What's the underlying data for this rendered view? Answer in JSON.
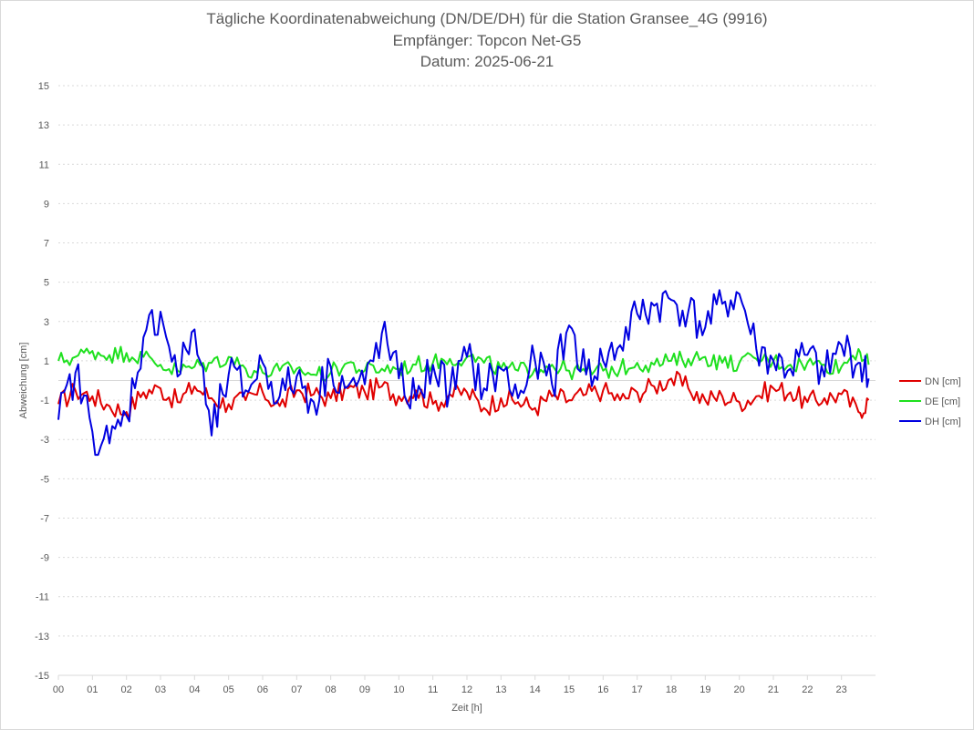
{
  "chart_data": {
    "type": "line",
    "title": "Tägliche Koordinatenabweichung (DN/DE/DH) für die Station Gransee_4G (9916)",
    "subtitle": "Empfänger: Topcon Net-G5",
    "date_label": "Datum: 2025-06-21",
    "xlabel": "Zeit [h]",
    "ylabel": "Abweichung [cm]",
    "ylim": [
      -15,
      15
    ],
    "xlim": [
      0,
      24
    ],
    "yticks": [
      15,
      13,
      11,
      9,
      7,
      5,
      3,
      1,
      -1,
      -3,
      -5,
      -7,
      -9,
      -11,
      -13,
      -15
    ],
    "xticks": [
      "00",
      "01",
      "02",
      "03",
      "04",
      "05",
      "06",
      "07",
      "08",
      "09",
      "10",
      "11",
      "12",
      "13",
      "14",
      "15",
      "16",
      "17",
      "18",
      "19",
      "20",
      "21",
      "22",
      "23"
    ],
    "grid": "horizontal dotted",
    "legend_position": "right",
    "series": [
      {
        "name": "DN [cm]",
        "color": "#e00000",
        "x": [
          0,
          0.5,
          1,
          1.5,
          2,
          2.5,
          3,
          3.5,
          4,
          4.5,
          5,
          5.5,
          6,
          6.5,
          7,
          7.5,
          8,
          8.5,
          9,
          9.5,
          10,
          10.5,
          11,
          11.5,
          12,
          12.5,
          13,
          13.5,
          14,
          14.5,
          15,
          15.5,
          16,
          16.5,
          17,
          17.5,
          18,
          18.5,
          19,
          19.5,
          20,
          20.5,
          21,
          21.5,
          22,
          22.5,
          23,
          23.5,
          23.8
        ],
        "values": [
          -1.2,
          -0.5,
          -0.8,
          -1.3,
          -1.6,
          -0.6,
          -0.4,
          -1.1,
          -0.3,
          -0.9,
          -1.2,
          -1.0,
          -0.6,
          -1.3,
          -0.5,
          -0.7,
          -0.9,
          -0.4,
          -0.6,
          -0.3,
          -0.8,
          -0.5,
          -1.2,
          -0.7,
          -0.6,
          -1.4,
          -0.9,
          -1.1,
          -1.4,
          -0.8,
          -1.0,
          -0.7,
          -0.5,
          -1.0,
          -0.6,
          -0.3,
          0.1,
          -0.4,
          -1.0,
          -0.8,
          -1.1,
          -0.8,
          -0.4,
          -0.6,
          -1.1,
          -0.9,
          -0.7,
          -1.6,
          -1.0
        ]
      },
      {
        "name": "DE [cm]",
        "color": "#1ee01e",
        "x": [
          0,
          0.5,
          1,
          1.5,
          2,
          2.5,
          3,
          3.5,
          4,
          4.5,
          5,
          5.5,
          6,
          6.5,
          7,
          7.5,
          8,
          8.5,
          9,
          9.5,
          10,
          10.5,
          11,
          11.5,
          12,
          12.5,
          13,
          13.5,
          14,
          14.5,
          15,
          15.5,
          16,
          16.5,
          17,
          17.5,
          18,
          18.5,
          19,
          19.5,
          20,
          20.5,
          21,
          21.5,
          22,
          22.5,
          23,
          23.5,
          23.8
        ],
        "values": [
          1.0,
          1.2,
          1.5,
          1.3,
          1.4,
          1.2,
          0.8,
          0.5,
          0.7,
          0.9,
          1.2,
          0.6,
          0.4,
          0.5,
          0.6,
          0.3,
          0.4,
          0.9,
          0.5,
          0.6,
          0.6,
          0.8,
          0.9,
          1.1,
          1.2,
          0.9,
          0.6,
          0.5,
          0.6,
          0.8,
          0.5,
          0.4,
          0.5,
          0.6,
          0.9,
          0.8,
          1.0,
          1.1,
          1.2,
          0.9,
          0.9,
          1.1,
          1.0,
          0.8,
          0.9,
          0.8,
          0.7,
          1.6,
          0.8
        ]
      },
      {
        "name": "DH [cm]",
        "color": "#0000e0",
        "x": [
          0,
          0.5,
          1,
          1.5,
          2,
          2.5,
          3,
          3.5,
          4,
          4.5,
          5,
          5.5,
          6,
          6.5,
          7,
          7.5,
          8,
          8.5,
          9,
          9.5,
          10,
          10.5,
          11,
          11.5,
          12,
          12.5,
          13,
          13.5,
          14,
          14.5,
          15,
          15.5,
          16,
          16.5,
          17,
          17.5,
          18,
          18.5,
          19,
          19.5,
          20,
          20.5,
          21,
          21.5,
          22,
          22.5,
          23,
          23.5,
          23.8
        ],
        "values": [
          -2.0,
          0.4,
          -2.6,
          -3.2,
          -1.8,
          2.2,
          3.5,
          0.2,
          2.6,
          -2.8,
          0.3,
          -0.5,
          0.9,
          -0.8,
          0.2,
          -1.1,
          0.7,
          -0.3,
          -0.2,
          2.4,
          0.1,
          -1.0,
          0.8,
          -0.5,
          1.2,
          -0.4,
          0.6,
          -0.9,
          1.0,
          -0.2,
          2.8,
          0.3,
          1.0,
          1.8,
          3.4,
          3.8,
          4.1,
          3.5,
          2.7,
          3.9,
          4.4,
          1.6,
          1.0,
          0.6,
          1.3,
          0.2,
          1.8,
          0.9,
          0.1
        ]
      }
    ]
  }
}
